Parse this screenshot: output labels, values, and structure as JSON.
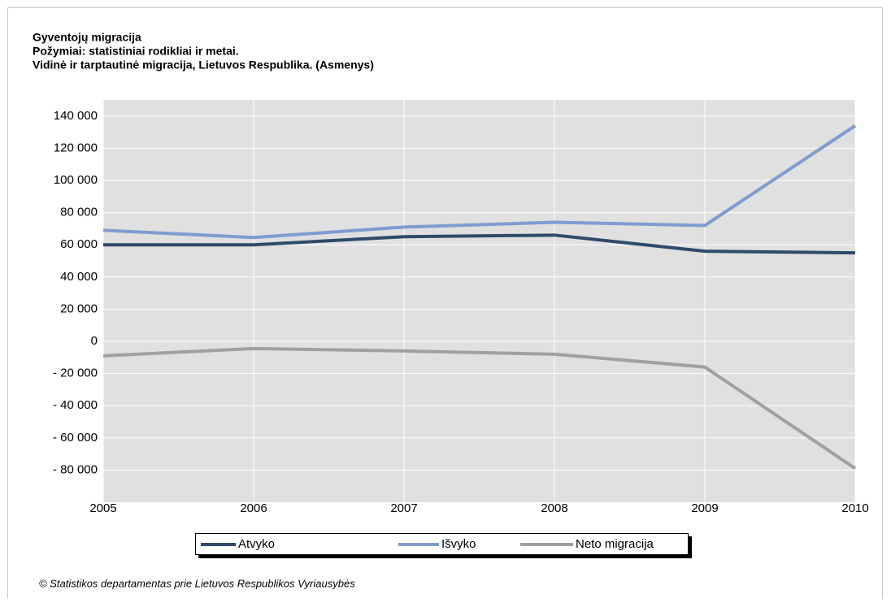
{
  "chart_data": {
    "type": "line",
    "title": "Gyventojų migracija",
    "subtitle": [
      "Požymiai: statistiniai rodikliai ir metai.",
      "Vidinė ir tarptautinė migracija, Lietuvos Respublika. (Asmenys)"
    ],
    "x": [
      2005,
      2006,
      2007,
      2008,
      2009,
      2010
    ],
    "series": [
      {
        "name": "Atvyko",
        "color": "#2f4a6b",
        "values": [
          60000,
          60000,
          65000,
          66000,
          56000,
          55000
        ]
      },
      {
        "name": "Išvyko",
        "color": "#7f9cd0",
        "values": [
          69000,
          64500,
          71000,
          74000,
          72000,
          134000
        ]
      },
      {
        "name": "Neto migracija",
        "color": "#a0a0a0",
        "values": [
          -9000,
          -4500,
          -6000,
          -8000,
          -16000,
          -79000
        ]
      }
    ],
    "xlim": [
      2005,
      2010
    ],
    "xticks": [
      2005,
      2006,
      2007,
      2008,
      2009,
      2010
    ],
    "ylim": [
      -100000,
      150000
    ],
    "yticks": [
      {
        "value": -80000,
        "label": "- 80 000"
      },
      {
        "value": -60000,
        "label": "- 60 000"
      },
      {
        "value": -40000,
        "label": "- 40 000"
      },
      {
        "value": -20000,
        "label": "- 20 000"
      },
      0,
      {
        "value": 20000,
        "label": "20 000"
      },
      {
        "value": 40000,
        "label": "40 000"
      },
      {
        "value": 60000,
        "label": "60 000"
      },
      {
        "value": 80000,
        "label": "80 000"
      },
      {
        "value": 100000,
        "label": "100 000"
      },
      {
        "value": 120000,
        "label": "120 000"
      },
      {
        "value": 140000,
        "label": "140 000"
      }
    ],
    "grid": true,
    "legend": "bottom",
    "footer": "© Statistikos departamentas prie Lietuvos Respublikos Vyriausybės"
  }
}
